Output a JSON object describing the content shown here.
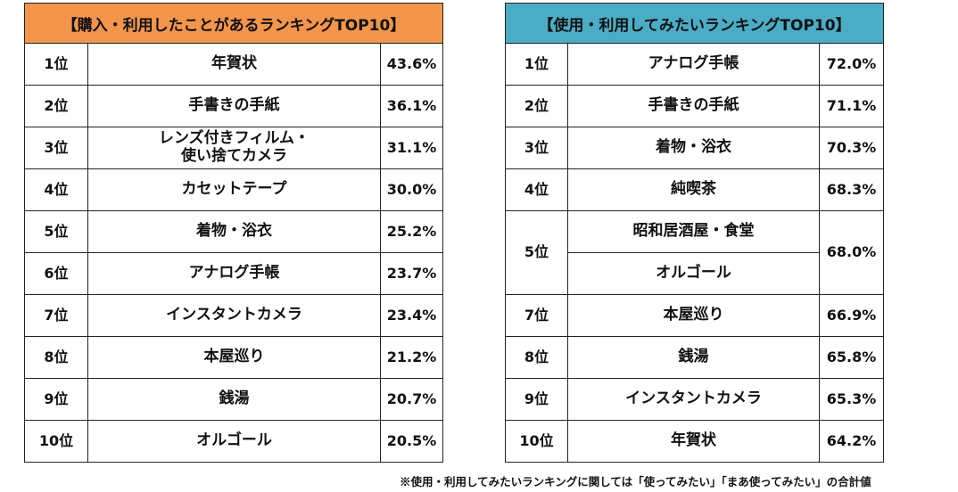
{
  "left": {
    "title": "【購入・利用したことがあるランキングTOP10】",
    "header_color": "#F4954C",
    "rows": [
      {
        "rank": "1位",
        "item": "年賀状",
        "pct": "43.6%"
      },
      {
        "rank": "2位",
        "item": "手書きの手紙",
        "pct": "36.1%"
      },
      {
        "rank": "3位",
        "item": "レンズ付きフィルム・\n使い捨てカメラ",
        "pct": "31.1%"
      },
      {
        "rank": "4位",
        "item": "カセットテープ",
        "pct": "30.0%"
      },
      {
        "rank": "5位",
        "item": "着物・浴衣",
        "pct": "25.2%"
      },
      {
        "rank": "6位",
        "item": "アナログ手帳",
        "pct": "23.7%"
      },
      {
        "rank": "7位",
        "item": "インスタントカメラ",
        "pct": "23.4%"
      },
      {
        "rank": "8位",
        "item": "本屋巡り",
        "pct": "21.2%"
      },
      {
        "rank": "9位",
        "item": "銭湯",
        "pct": "20.7%"
      },
      {
        "rank": "10位",
        "item": "オルゴール",
        "pct": "20.5%"
      }
    ]
  },
  "right": {
    "title": "【使用・利用してみたいランキングTOP10】",
    "header_color": "#4BACC6",
    "rows": [
      {
        "rank": "1位",
        "item": "アナログ手帳",
        "pct": "72.0%"
      },
      {
        "rank": "2位",
        "item": "手書きの手紙",
        "pct": "71.1%"
      },
      {
        "rank": "3位",
        "item": "着物・浴衣",
        "pct": "70.3%"
      },
      {
        "rank": "4位",
        "item": "純喫茶",
        "pct": "68.3%"
      },
      {
        "rank": "5位",
        "item": "昭和居酒屋・食堂",
        "pct": "68.0%",
        "span": 2
      },
      {
        "item": "オルゴール"
      },
      {
        "rank": "7位",
        "item": "本屋巡り",
        "pct": "66.9%"
      },
      {
        "rank": "8位",
        "item": "銭湯",
        "pct": "65.8%"
      },
      {
        "rank": "9位",
        "item": "インスタントカメラ",
        "pct": "65.3%"
      },
      {
        "rank": "10位",
        "item": "年賀状",
        "pct": "64.2%"
      }
    ]
  },
  "footnote": "※使用・利用してみたいランキングに関しては「使ってみたい」「まあ使ってみたい」の合計値"
}
